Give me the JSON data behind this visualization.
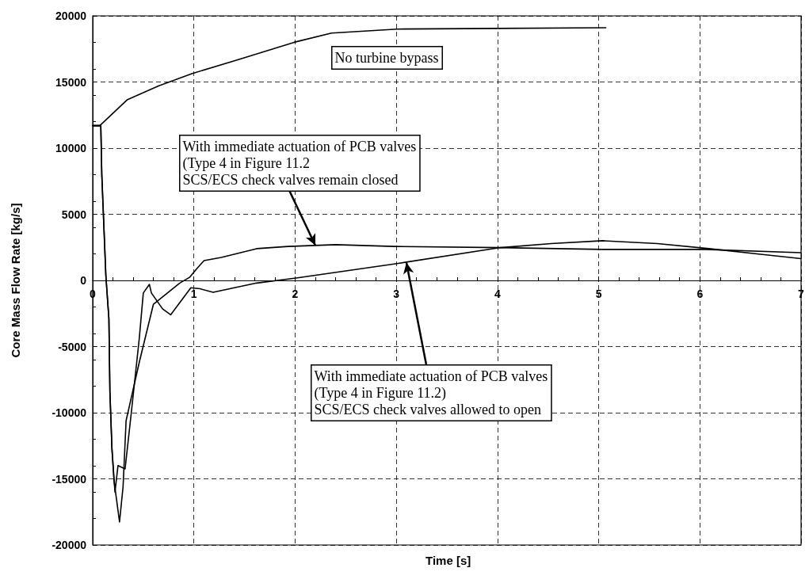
{
  "chart_data": {
    "type": "line",
    "xlabel": "Time [s]",
    "ylabel": "Core Mass Flow Rate [kg/s]",
    "xlim": [
      0,
      7
    ],
    "xticks": [
      0,
      1,
      2,
      3,
      4,
      5,
      6,
      7
    ],
    "ylim": [
      -20000,
      20000
    ],
    "yticks": [
      -20000,
      -15000,
      -10000,
      -5000,
      0,
      5000,
      10000,
      15000,
      20000
    ],
    "grid": true,
    "marker": "none",
    "line_style": "solid",
    "series": [
      {
        "color": "#000000",
        "x": [
          0,
          0.07,
          0.34,
          0.65,
          0.98,
          1.42,
          1.99,
          2.36,
          3.01,
          4.0,
          5.07
        ],
        "values": [
          11700,
          11700,
          13650,
          14700,
          15630,
          16650,
          18000,
          18700,
          19000,
          19050,
          19100
        ]
      },
      {
        "color": "#000000",
        "x": [
          0,
          0.08,
          0.09,
          0.13,
          0.16,
          0.17,
          0.19,
          0.21,
          0.265,
          0.3,
          0.33,
          0.46,
          0.6,
          0.86,
          0.96,
          1.03,
          1.1,
          1.27,
          1.62,
          1.93,
          2.4,
          2.98,
          4.03,
          5.04,
          6.05,
          7
        ],
        "values": [
          11700,
          11700,
          7960,
          360,
          -2900,
          -8400,
          -12700,
          -15100,
          -18260,
          -15600,
          -10600,
          -6200,
          -1800,
          -200,
          250,
          900,
          1500,
          1740,
          2400,
          2570,
          2700,
          2570,
          2480,
          2340,
          2340,
          2100
        ]
      },
      {
        "color": "#000000",
        "x": [
          0,
          0.08,
          0.09,
          0.13,
          0.16,
          0.17,
          0.19,
          0.22,
          0.25,
          0.32,
          0.38,
          0.46,
          0.5,
          0.56,
          0.58,
          0.69,
          0.77,
          0.97,
          1.06,
          1.19,
          1.62,
          2.01,
          3.02,
          4.03,
          4.53,
          5.04,
          5.58,
          6.09,
          6.6,
          7
        ],
        "values": [
          11700,
          11700,
          7960,
          360,
          -2900,
          -8400,
          -12700,
          -16000,
          -14000,
          -14250,
          -10100,
          -4400,
          -950,
          -300,
          -950,
          -2150,
          -2600,
          -550,
          -630,
          -900,
          -200,
          180,
          1290,
          2480,
          2780,
          3000,
          2780,
          2400,
          1980,
          1650
        ]
      }
    ],
    "annotations": [
      "No turbine bypass",
      {
        "text": "With immediate actuation of PCB valves\n(Type 4 in Figure 11.2\nSCS/ECS check valves remain closed",
        "x": 2.2,
        "y": 2650
      },
      {
        "text": "With immediate actuation of PCB valves\n(Type 4 in Figure 11.2)\nSCS/ECS check valves allowed to open",
        "x": 3.1,
        "y": 1350
      }
    ]
  }
}
